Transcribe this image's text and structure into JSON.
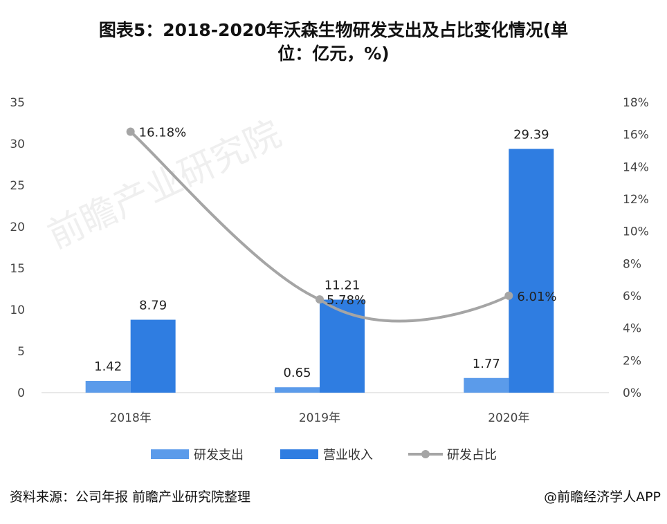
{
  "chart_data": {
    "type": "bar+line",
    "title_lines": [
      "图表5：2018-2020年沃森生物研发支出及占比变化情况(单",
      "位：亿元，%)"
    ],
    "categories": [
      "2018年",
      "2019年",
      "2020年"
    ],
    "left_axis": {
      "min": 0,
      "max": 35,
      "ticks": [
        "0",
        "5",
        "10",
        "15",
        "20",
        "25",
        "30",
        "35"
      ]
    },
    "right_axis": {
      "min": 0,
      "max": 18,
      "ticks": [
        "0%",
        "2%",
        "4%",
        "6%",
        "8%",
        "10%",
        "12%",
        "14%",
        "16%",
        "18%"
      ]
    },
    "series": [
      {
        "name": "研发支出",
        "type": "bar",
        "axis": "left",
        "color": "#5B9BEA",
        "values": [
          1.42,
          0.65,
          1.77
        ],
        "labels": [
          "1.42",
          "0.65",
          "1.77"
        ]
      },
      {
        "name": "营业收入",
        "type": "bar",
        "axis": "left",
        "color": "#2F7DE1",
        "values": [
          8.79,
          11.21,
          29.39
        ],
        "labels": [
          "8.79",
          "11.21",
          "29.39"
        ]
      },
      {
        "name": "研发占比",
        "type": "line",
        "axis": "right",
        "color": "#A5A5A5",
        "values": [
          16.18,
          5.78,
          6.01
        ],
        "labels": [
          "16.18%",
          "5.78%",
          "6.01%"
        ]
      }
    ],
    "grid": false,
    "legend": "bottom"
  },
  "footer": {
    "source": "资料来源：公司年报 前瞻产业研究院整理",
    "credit": "@前瞻经济学人APP"
  },
  "watermark": "前瞻产业研究院"
}
